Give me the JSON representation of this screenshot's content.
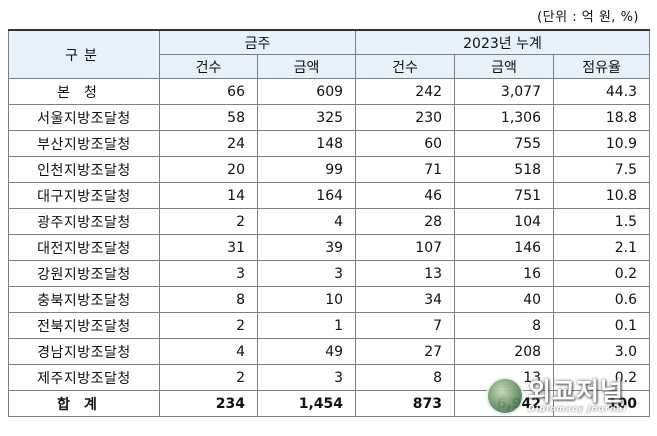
{
  "unit_note": "(단위 : 억 원, %)",
  "header": {
    "gubun": "구분",
    "this_week": "금주",
    "cumulative": "2023년 누계",
    "count": "건수",
    "amount": "금액",
    "share": "점유율"
  },
  "rows": [
    {
      "name": "본청",
      "w_count": "66",
      "w_amount": "609",
      "c_count": "242",
      "c_amount": "3,077",
      "share": "44.3"
    },
    {
      "name": "서울지방조달청",
      "w_count": "58",
      "w_amount": "325",
      "c_count": "230",
      "c_amount": "1,306",
      "share": "18.8"
    },
    {
      "name": "부산지방조달청",
      "w_count": "24",
      "w_amount": "148",
      "c_count": "60",
      "c_amount": "755",
      "share": "10.9"
    },
    {
      "name": "인천지방조달청",
      "w_count": "20",
      "w_amount": "99",
      "c_count": "71",
      "c_amount": "518",
      "share": "7.5"
    },
    {
      "name": "대구지방조달청",
      "w_count": "14",
      "w_amount": "164",
      "c_count": "46",
      "c_amount": "751",
      "share": "10.8"
    },
    {
      "name": "광주지방조달청",
      "w_count": "2",
      "w_amount": "4",
      "c_count": "28",
      "c_amount": "104",
      "share": "1.5"
    },
    {
      "name": "대전지방조달청",
      "w_count": "31",
      "w_amount": "39",
      "c_count": "107",
      "c_amount": "146",
      "share": "2.1"
    },
    {
      "name": "강원지방조달청",
      "w_count": "3",
      "w_amount": "3",
      "c_count": "13",
      "c_amount": "16",
      "share": "0.2"
    },
    {
      "name": "충북지방조달청",
      "w_count": "8",
      "w_amount": "10",
      "c_count": "34",
      "c_amount": "40",
      "share": "0.6"
    },
    {
      "name": "전북지방조달청",
      "w_count": "2",
      "w_amount": "1",
      "c_count": "7",
      "c_amount": "8",
      "share": "0.1"
    },
    {
      "name": "경남지방조달청",
      "w_count": "4",
      "w_amount": "49",
      "c_count": "27",
      "c_amount": "208",
      "share": "3.0"
    },
    {
      "name": "제주지방조달청",
      "w_count": "2",
      "w_amount": "3",
      "c_count": "8",
      "c_amount": "13",
      "share": "0.2"
    }
  ],
  "total": {
    "name": "합계",
    "w_count": "234",
    "w_amount": "1,454",
    "c_count": "873",
    "c_amount": "6,942",
    "share": "100"
  },
  "watermark": {
    "title": "외교저널",
    "subtitle": "Diplomacy Journal"
  }
}
